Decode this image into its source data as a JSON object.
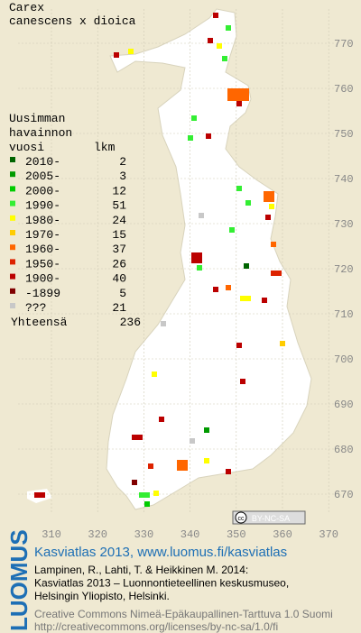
{
  "title": [
    "Carex",
    "canescens x dioica"
  ],
  "legend": {
    "header": [
      "Uusimman",
      "havainnon"
    ],
    "col_headers": [
      "vuosi",
      "lkm"
    ],
    "rows": [
      {
        "label": "2010-",
        "count": 2,
        "color": "#006400"
      },
      {
        "label": "2005-",
        "count": 3,
        "color": "#009a00"
      },
      {
        "label": "2000-",
        "count": 12,
        "color": "#00cc00"
      },
      {
        "label": "1990-",
        "count": 51,
        "color": "#33ee33"
      },
      {
        "label": "1980-",
        "count": 24,
        "color": "#ffff00"
      },
      {
        "label": "1970-",
        "count": 15,
        "color": "#ffcc00"
      },
      {
        "label": "1960-",
        "count": 37,
        "color": "#ff6600"
      },
      {
        "label": "1950-",
        "count": 26,
        "color": "#dd2200"
      },
      {
        "label": "1900-",
        "count": 40,
        "color": "#bb0000"
      },
      {
        "label": "-1899",
        "count": 5,
        "color": "#800000"
      },
      {
        "label": "???",
        "count": 21,
        "color": "#c8c8c8"
      }
    ],
    "total": {
      "label": "Yhteensä",
      "count": 236
    }
  },
  "grid": {
    "x_labels": [
      310,
      320,
      330,
      340,
      350,
      360,
      370
    ],
    "y_labels": [
      670,
      680,
      690,
      700,
      710,
      720,
      730,
      740,
      750,
      760,
      770
    ]
  },
  "badge": [
    "cc",
    "BY-NC-SA"
  ],
  "footer": {
    "brand": "LUOMUS",
    "heading": "Kasviatlas 2013, www.luomus.fi/kasviatlas",
    "citation": [
      "Lampinen, R., Lahti, T. & Heikkinen M. 2014:",
      "Kasviatlas 2013 – Luonnontieteellinen keskusmuseo,",
      "Helsingin Yliopisto, Helsinki."
    ],
    "license": [
      "Creative Commons Nimeä-Epäkaupallinen-Tarttuva 1.0 Suomi",
      "http://creativecommons.org/licenses/by-nc-sa/1.0/fi"
    ]
  }
}
